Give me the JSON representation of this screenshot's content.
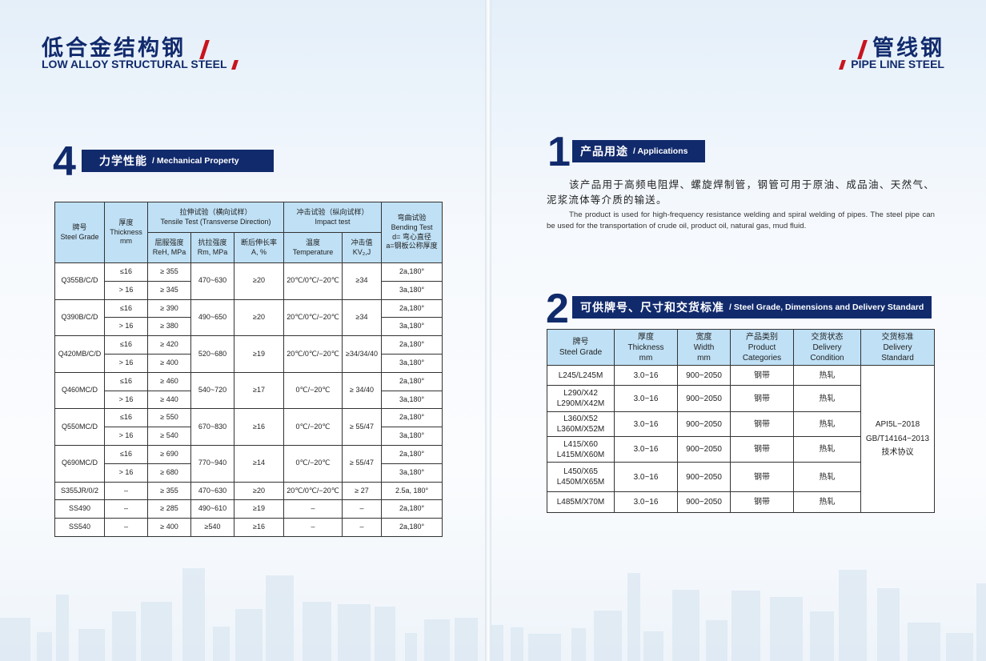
{
  "left_page": {
    "title_cn": "低合金结构钢",
    "title_en": "LOW ALLOY STRUCTURAL STEEL",
    "section": {
      "number": "4",
      "title_cn": "力学性能",
      "title_en": "/ Mechanical Property"
    },
    "table": {
      "headers": {
        "grade": [
          "牌号",
          "Steel Grade"
        ],
        "thickness": [
          "厚度",
          "Thickness",
          "mm"
        ],
        "tensile": [
          "拉伸试验（横向试样）",
          "Tensile Test (Transverse Direction)"
        ],
        "reh": [
          "屈服强度",
          "ReH, MPa"
        ],
        "rm": [
          "抗拉强度",
          "Rm, MPa"
        ],
        "a": [
          "断后伸长率",
          "A, %"
        ],
        "impact": [
          "冲击试验（纵向试样）",
          "Impact test"
        ],
        "temp": [
          "温度",
          "Temperature"
        ],
        "kv": [
          "冲击值",
          "KV₂,J"
        ],
        "bending": [
          "弯曲试验",
          "Bending Test",
          "d= 弯心直径",
          "a=钢板公称厚度"
        ]
      },
      "groups": [
        {
          "grade": "Q355B/C/D",
          "rm": "470~630",
          "a": "≥20",
          "temp": "20℃/0℃/−20℃",
          "kv": "≥34",
          "rows": [
            {
              "thk": "≤16",
              "reh": "≥ 355",
              "bend": "2a,180°"
            },
            {
              "thk": "> 16",
              "reh": "≥ 345",
              "bend": "3a,180°"
            }
          ]
        },
        {
          "grade": "Q390B/C/D",
          "rm": "490~650",
          "a": "≥20",
          "temp": "20℃/0℃/−20℃",
          "kv": "≥34",
          "rows": [
            {
              "thk": "≤16",
              "reh": "≥ 390",
              "bend": "2a,180°"
            },
            {
              "thk": "> 16",
              "reh": "≥ 380",
              "bend": "3a,180°"
            }
          ]
        },
        {
          "grade": "Q420MB/C/D",
          "rm": "520~680",
          "a": "≥19",
          "temp": "20℃/0℃/−20℃",
          "kv": "≥34/34/40",
          "rows": [
            {
              "thk": "≤16",
              "reh": "≥ 420",
              "bend": "2a,180°"
            },
            {
              "thk": "> 16",
              "reh": "≥ 400",
              "bend": "3a,180°"
            }
          ]
        },
        {
          "grade": "Q460MC/D",
          "rm": "540~720",
          "a": "≥17",
          "temp": "0℃/−20℃",
          "kv": "≥ 34/40",
          "rows": [
            {
              "thk": "≤16",
              "reh": "≥ 460",
              "bend": "2a,180°"
            },
            {
              "thk": "> 16",
              "reh": "≥ 440",
              "bend": "3a,180°"
            }
          ]
        },
        {
          "grade": "Q550MC/D",
          "rm": "670~830",
          "a": "≥16",
          "temp": "0℃/−20℃",
          "kv": "≥ 55/47",
          "rows": [
            {
              "thk": "≤16",
              "reh": "≥ 550",
              "bend": "2a,180°"
            },
            {
              "thk": "> 16",
              "reh": "≥ 540",
              "bend": "3a,180°"
            }
          ]
        },
        {
          "grade": "Q690MC/D",
          "rm": "770~940",
          "a": "≥14",
          "temp": "0℃/−20℃",
          "kv": "≥ 55/47",
          "rows": [
            {
              "thk": "≤16",
              "reh": "≥ 690",
              "bend": "2a,180°"
            },
            {
              "thk": "> 16",
              "reh": "≥ 680",
              "bend": "3a,180°"
            }
          ]
        },
        {
          "grade": "S355JR/0/2",
          "rm": "470~630",
          "a": "≥20",
          "temp": "20℃/0℃/−20℃",
          "kv": "≥ 27",
          "rows": [
            {
              "thk": "–",
              "reh": "≥ 355",
              "bend": "2.5a, 180°"
            }
          ]
        },
        {
          "grade": "SS490",
          "rm": "490~610",
          "a": "≥19",
          "temp": "–",
          "kv": "–",
          "rows": [
            {
              "thk": "–",
              "reh": "≥ 285",
              "bend": "2a,180°"
            }
          ]
        },
        {
          "grade": "SS540",
          "rm": "≥540",
          "a": "≥16",
          "temp": "–",
          "kv": "–",
          "rows": [
            {
              "thk": "–",
              "reh": "≥ 400",
              "bend": "2a,180°"
            }
          ]
        }
      ]
    }
  },
  "right_page": {
    "title_cn": "管线钢",
    "title_en": "PIPE LINE STEEL",
    "section1": {
      "number": "1",
      "title_cn": "产品用途",
      "title_en": "/ Applications",
      "text_cn": "该产品用于高频电阻焊、螺旋焊制管，钢管可用于原油、成品油、天然气、泥浆流体等介质的输送。",
      "text_en": "The product is used for high-frequency resistance welding and spiral welding of pipes. The steel pipe can be used for the transportation of crude oil, product oil, natural gas, mud fluid."
    },
    "section2": {
      "number": "2",
      "title_cn": "可供牌号、尺寸和交货标准",
      "title_en": "/ Steel Grade, Dimensions and Delivery Standard"
    },
    "table": {
      "headers": [
        [
          "牌号",
          "Steel Grade"
        ],
        [
          "厚度",
          "Thickness",
          "mm"
        ],
        [
          "宽度",
          "Width",
          "mm"
        ],
        [
          "产品类别",
          "Product",
          "Categories"
        ],
        [
          "交货状态",
          "Delivery",
          "Condition"
        ],
        [
          "交货标准",
          "Delivery",
          "Standard"
        ]
      ],
      "rows": [
        {
          "grade": [
            "L245/L245M"
          ],
          "thk": "3.0~16",
          "width": "900~2050",
          "cat": "钢带",
          "cond": "热轧"
        },
        {
          "grade": [
            "L290/X42",
            "L290M/X42M"
          ],
          "thk": "3.0~16",
          "width": "900~2050",
          "cat": "钢带",
          "cond": "热轧"
        },
        {
          "grade": [
            "L360/X52",
            "L360M/X52M"
          ],
          "thk": "3.0~16",
          "width": "900~2050",
          "cat": "钢带",
          "cond": "热轧"
        },
        {
          "grade": [
            "L415/X60",
            "L415M/X60M"
          ],
          "thk": "3.0~16",
          "width": "900~2050",
          "cat": "钢带",
          "cond": "热轧"
        },
        {
          "grade": [
            "L450/X65",
            "L450M/X65M"
          ],
          "thk": "3.0~16",
          "width": "900~2050",
          "cat": "钢带",
          "cond": "热轧"
        },
        {
          "grade": [
            "L485M/X70M"
          ],
          "thk": "3.0~16",
          "width": "900~2050",
          "cat": "钢带",
          "cond": "热轧"
        }
      ],
      "standard": [
        "API5L−2018",
        "GB/T14164−2013",
        "技术协议"
      ]
    }
  },
  "colors": {
    "navy": "#112a6c",
    "accent_red": "#c8141e",
    "header_fill": "#bfe0f5"
  }
}
